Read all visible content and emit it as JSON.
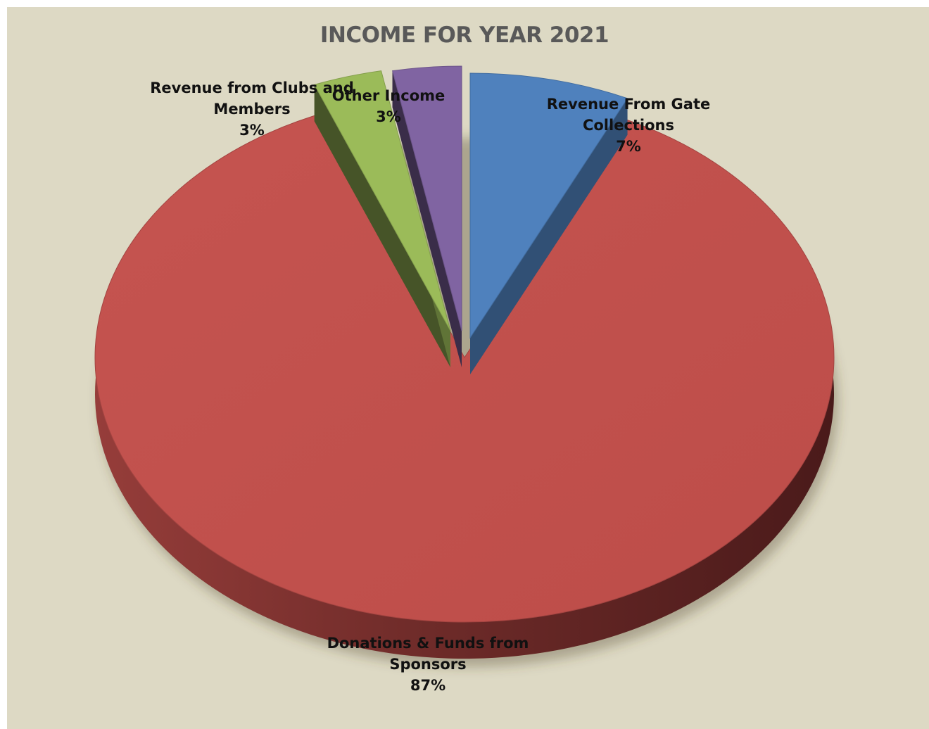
{
  "chart_data": {
    "type": "pie",
    "title": "INCOME FOR YEAR 2021",
    "categories": [
      "Revenue From Gate Collections",
      "Donations & Funds from Sponsors",
      "Revenue from Clubs and Members",
      "Other Income"
    ],
    "values": [
      7,
      87,
      3,
      3
    ],
    "value_labels": [
      "7%",
      "87%",
      "3%",
      "3%"
    ],
    "label_lines": [
      [
        "Revenue From Gate",
        "Collections"
      ],
      [
        "Donations & Funds from",
        "Sponsors"
      ],
      [
        "Revenue from Clubs and",
        "Members"
      ],
      [
        "Other Income"
      ]
    ],
    "colors": [
      "#4f81bd",
      "#c0504d",
      "#9bbb59",
      "#8064a2"
    ],
    "exploded": [
      true,
      false,
      true,
      true
    ],
    "style": "3d",
    "legend": "none",
    "background_color": "#ddd9c4"
  }
}
